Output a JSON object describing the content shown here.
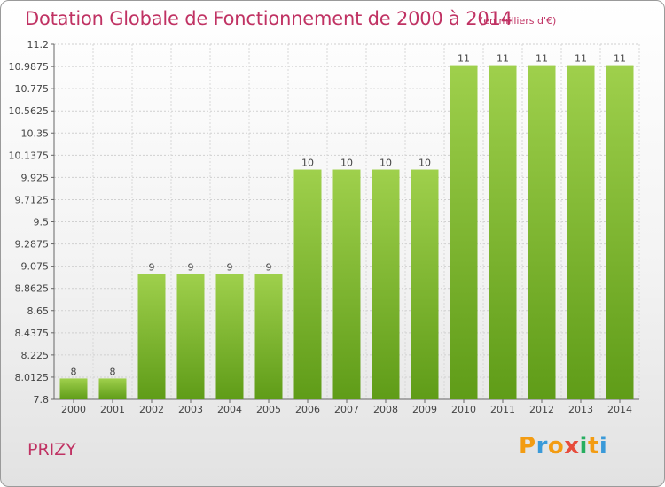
{
  "title": "Dotation Globale de Fonctionnement de 2000 à 2014",
  "unit": "(en milliers d'€)",
  "commune": "PRIZY",
  "logo": {
    "letters": [
      "P",
      "r",
      "o",
      "x",
      "i",
      "t",
      "i"
    ],
    "colors": [
      "#f39c12",
      "#3a9ad9",
      "#f39c12",
      "#e74c3c",
      "#27ae60",
      "#f39c12",
      "#3a9ad9"
    ]
  },
  "chart_data": {
    "type": "bar",
    "title": "Dotation Globale de Fonctionnement de 2000 à 2014",
    "xlabel": "",
    "ylabel": "(en milliers d'€)",
    "categories": [
      "2000",
      "2001",
      "2002",
      "2003",
      "2004",
      "2005",
      "2006",
      "2007",
      "2008",
      "2009",
      "2010",
      "2011",
      "2012",
      "2013",
      "2014"
    ],
    "values": [
      8,
      8,
      9,
      9,
      9,
      9,
      10,
      10,
      10,
      10,
      11,
      11,
      11,
      11,
      11
    ],
    "bar_labels": [
      "8",
      "8",
      "9",
      "9",
      "9",
      "9",
      "10",
      "10",
      "10",
      "10",
      "11",
      "11",
      "11",
      "11",
      "11"
    ],
    "ylim": [
      7.8,
      11.2
    ],
    "yticks": [
      7.8,
      8.0125,
      8.225,
      8.4375,
      8.65,
      8.8625,
      9.075,
      9.2875,
      9.5,
      9.7125,
      9.925,
      10.1375,
      10.35,
      10.5625,
      10.775,
      10.9875,
      11.2
    ],
    "ytick_labels": [
      "7.8",
      "8.0125",
      "8.225",
      "8.4375",
      "8.65",
      "8.8625",
      "9.075",
      "9.2875",
      "9.5",
      "9.7125",
      "9.925",
      "10.1375",
      "10.35",
      "10.5625",
      "10.775",
      "10.9875",
      "11.2"
    ],
    "grid": true,
    "bar_color": "#7ab834"
  }
}
